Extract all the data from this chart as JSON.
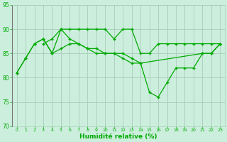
{
  "xlabel": "Humidité relative (%)",
  "bg_color": "#cceedd",
  "grid_color": "#aaccbb",
  "line_color": "#00aa00",
  "marker": "+",
  "ylim": [
    70,
    95
  ],
  "xlim": [
    -0.5,
    23.5
  ],
  "yticks": [
    70,
    75,
    80,
    85,
    90,
    95
  ],
  "xticks": [
    0,
    1,
    2,
    3,
    4,
    5,
    6,
    7,
    8,
    9,
    10,
    11,
    12,
    13,
    14,
    15,
    16,
    17,
    18,
    19,
    20,
    21,
    22,
    23
  ],
  "line1_x": [
    3,
    4,
    5,
    6,
    7,
    8,
    9,
    10,
    11,
    12,
    13,
    14,
    15,
    16,
    17,
    18,
    19,
    20,
    21,
    22,
    23
  ],
  "line1_y": [
    87,
    88,
    90,
    90,
    90,
    90,
    90,
    90,
    88,
    90,
    90,
    85,
    85,
    87,
    87,
    87,
    87,
    87,
    87,
    87,
    87
  ],
  "line2_x": [
    0,
    1,
    2,
    3,
    4,
    5,
    6,
    7,
    8,
    9,
    10,
    11,
    12,
    13,
    14,
    21,
    22,
    23
  ],
  "line2_y": [
    81,
    84,
    87,
    88,
    85,
    86,
    87,
    87,
    86,
    86,
    85,
    85,
    85,
    84,
    83,
    85,
    85,
    87
  ],
  "line3_x": [
    0,
    1,
    2,
    3,
    4,
    5,
    6,
    7,
    8,
    9,
    10,
    11,
    12,
    13,
    14,
    15,
    16,
    17,
    18,
    19,
    20,
    21,
    22,
    23
  ],
  "line3_y": [
    81,
    84,
    87,
    88,
    85,
    90,
    88,
    87,
    86,
    85,
    85,
    85,
    84,
    83,
    83,
    77,
    76,
    79,
    82,
    82,
    82,
    85,
    85,
    87
  ]
}
